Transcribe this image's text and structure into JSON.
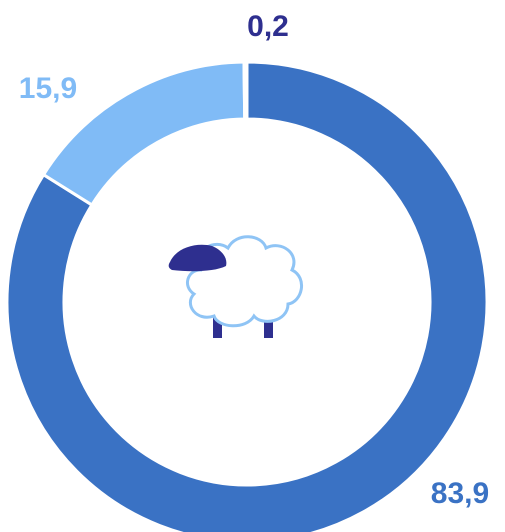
{
  "chart_data": {
    "type": "pie",
    "categories": [
      "",
      "",
      ""
    ],
    "values": [
      83.9,
      15.9,
      0.2
    ],
    "value_labels": [
      "83,9",
      "15,9",
      "0,2"
    ],
    "colors": [
      "#3a72c4",
      "#80bbf6",
      "#2e2f8f"
    ]
  }
}
